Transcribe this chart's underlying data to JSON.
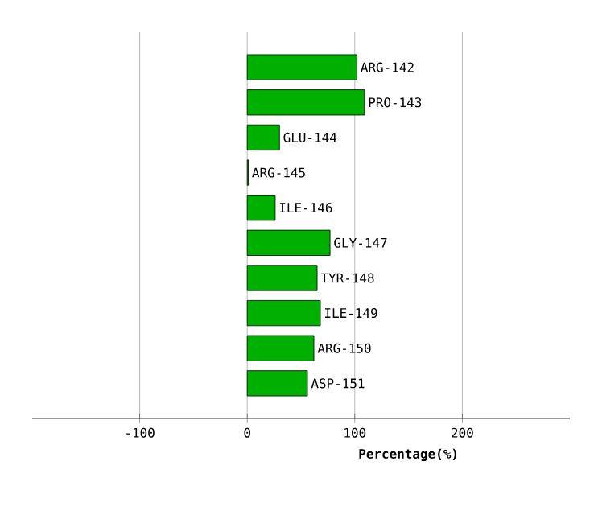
{
  "chart_data": {
    "type": "bar",
    "orientation": "horizontal",
    "xlabel": "Percentage(%)",
    "categories": [
      "ARG-142",
      "PRO-143",
      "GLU-144",
      "ARG-145",
      "ILE-146",
      "GLY-147",
      "TYR-148",
      "ILE-149",
      "ARG-150",
      "ASP-151"
    ],
    "values": [
      102,
      109,
      30,
      1,
      26,
      77,
      65,
      68,
      62,
      56
    ],
    "color": "#00b000",
    "xlim": [
      -200,
      300
    ],
    "xticks": [
      -100,
      0,
      100,
      200
    ],
    "grid": "x",
    "tick_labels": "x"
  }
}
